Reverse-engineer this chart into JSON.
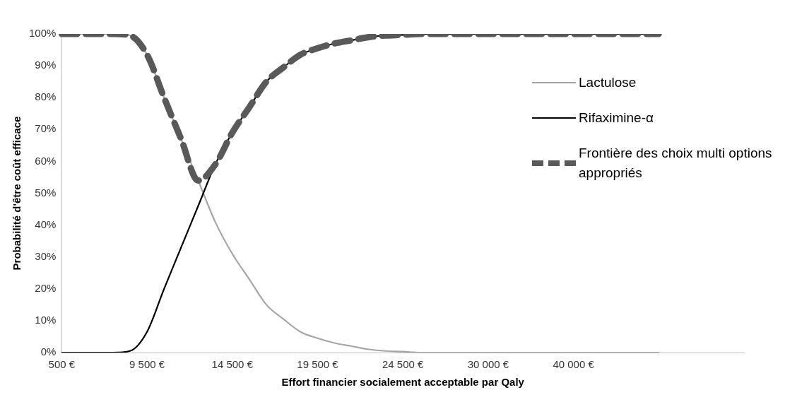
{
  "chart_data": {
    "type": "line",
    "xlabel": "Effort financier socialement acceptable par Qaly",
    "ylabel": "Probabilité d'être coût efficace",
    "categories": [
      "500 €",
      null,
      null,
      null,
      null,
      "9 500 €",
      null,
      null,
      null,
      null,
      "14 500 €",
      null,
      null,
      null,
      null,
      "19 500 €",
      null,
      null,
      null,
      null,
      "24 500 €",
      null,
      null,
      null,
      null,
      "30 000 €",
      null,
      null,
      null,
      null,
      "40 000 €",
      null,
      null,
      null,
      null,
      null,
      null,
      null,
      null,
      null,
      null
    ],
    "series": [
      {
        "name": "Lactulose",
        "color": "#a6a6a6",
        "line_style": "solid",
        "values": [
          100,
          100,
          100,
          100,
          99.5,
          93.5,
          80,
          67,
          54,
          41,
          31,
          23,
          15,
          10.5,
          6.5,
          4.5,
          3,
          2,
          1,
          0.5,
          0.3,
          0,
          0,
          0,
          0,
          0,
          0,
          0,
          0,
          0,
          0,
          0,
          0,
          0,
          0,
          0,
          null,
          null,
          null,
          null,
          null
        ]
      },
      {
        "name": "Rifaximine-α",
        "color": "#000000",
        "line_style": "solid",
        "values": [
          0,
          0,
          0,
          0,
          0.5,
          6.5,
          20,
          33,
          46,
          59,
          69,
          77,
          85,
          89.5,
          93.5,
          95.5,
          97,
          98,
          99,
          99.5,
          99.7,
          100,
          100,
          100,
          100,
          100,
          100,
          100,
          100,
          100,
          100,
          100,
          100,
          100,
          100,
          100,
          null,
          null,
          null,
          null,
          null
        ]
      },
      {
        "name": "Frontière des choix multi options appropriés",
        "color": "#595959",
        "line_style": "dashed",
        "values": [
          100,
          100,
          100,
          100,
          99.5,
          93.5,
          80,
          67,
          54,
          59,
          69,
          77,
          85,
          89.5,
          93.5,
          95.5,
          97,
          98,
          99,
          99.5,
          99.7,
          100,
          100,
          100,
          100,
          100,
          100,
          100,
          100,
          100,
          100,
          100,
          100,
          100,
          100,
          100,
          null,
          null,
          null,
          null,
          null
        ]
      }
    ],
    "ylim": [
      0,
      100
    ],
    "yticks": [
      {
        "value": 0,
        "label": "0%"
      },
      {
        "value": 10,
        "label": "10%"
      },
      {
        "value": 20,
        "label": "20%"
      },
      {
        "value": 30,
        "label": "30%"
      },
      {
        "value": 40,
        "label": "40%"
      },
      {
        "value": 50,
        "label": "50%"
      },
      {
        "value": 60,
        "label": "60%"
      },
      {
        "value": 70,
        "label": "70%"
      },
      {
        "value": 80,
        "label": "80%"
      },
      {
        "value": 90,
        "label": "90%"
      },
      {
        "value": 100,
        "label": "100%"
      }
    ],
    "grid": false,
    "legend": "right",
    "marker": "none"
  }
}
